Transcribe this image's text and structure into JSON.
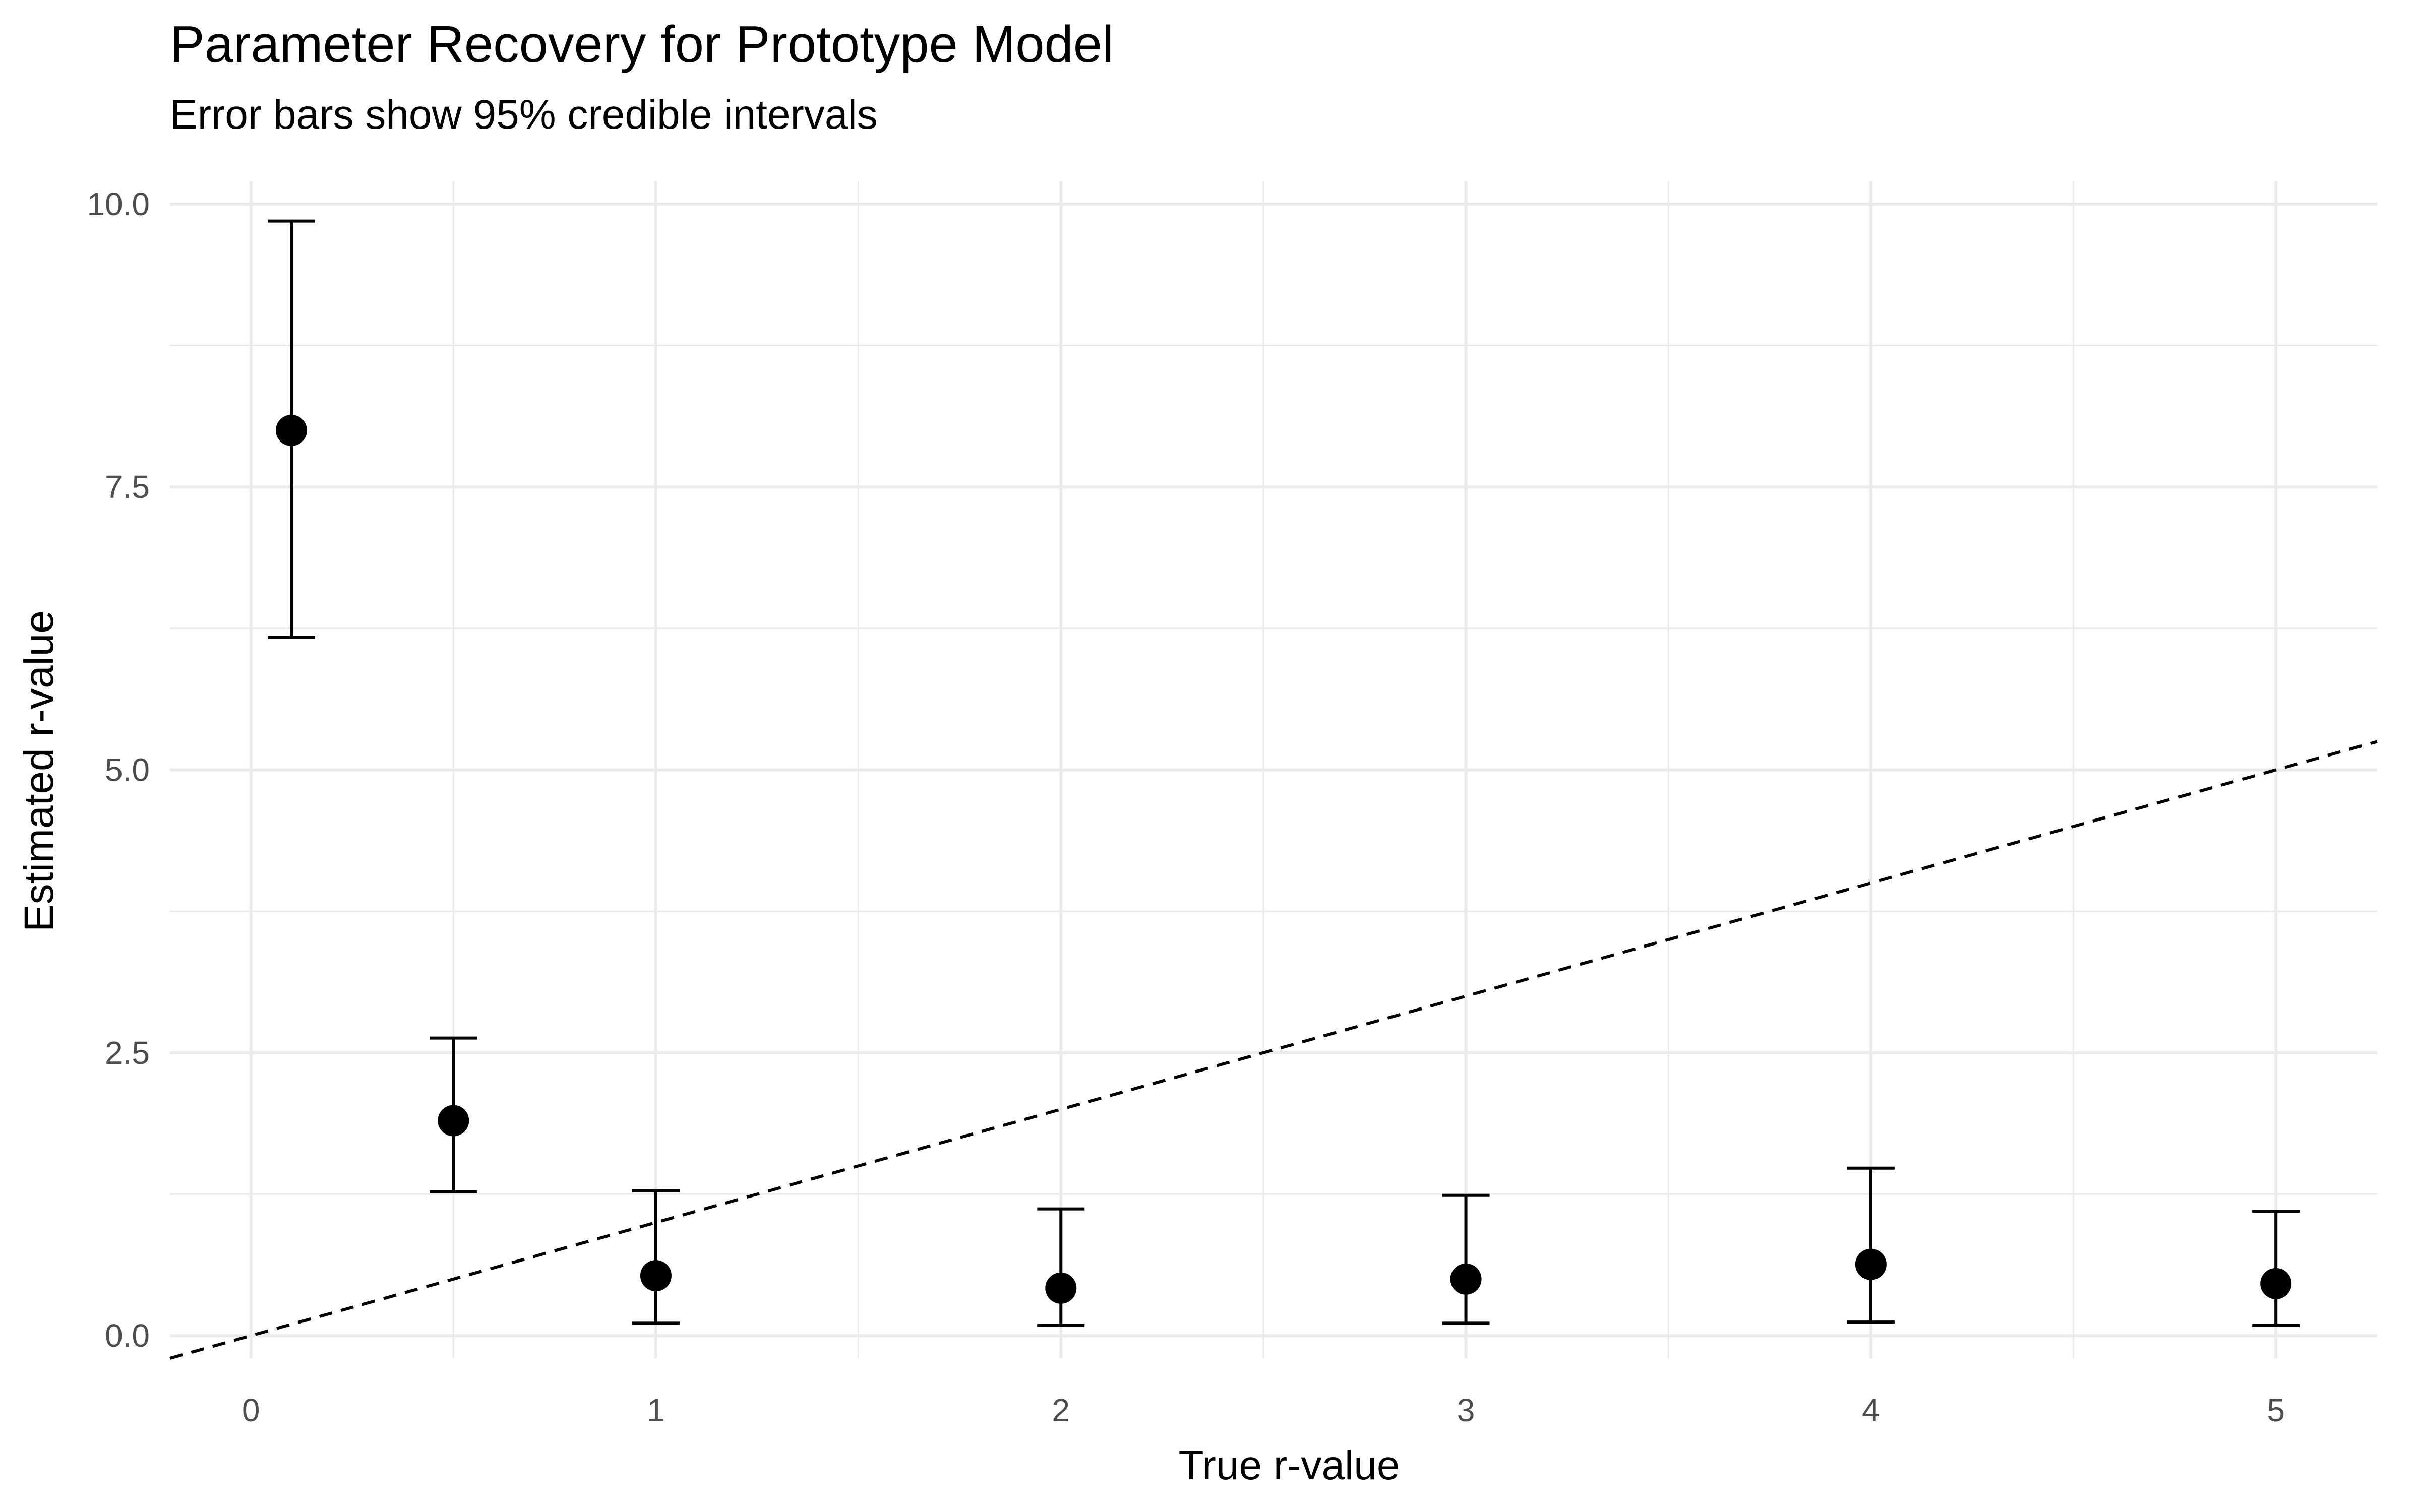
{
  "chart_data": {
    "type": "scatter",
    "title": "Parameter Recovery for Prototype Model",
    "subtitle": "Error bars show 95% credible intervals",
    "xlabel": "True r-value",
    "ylabel": "Estimated r-value",
    "xlim": [
      -0.2,
      5.25
    ],
    "ylim": [
      -0.2,
      10.2
    ],
    "x_ticks": [
      0,
      1,
      2,
      3,
      4,
      5
    ],
    "x_tick_labels": [
      "0",
      "1",
      "2",
      "3",
      "4",
      "5"
    ],
    "y_ticks": [
      0,
      2.5,
      5,
      7.5,
      10
    ],
    "y_tick_labels": [
      "0.0",
      "2.5",
      "5.0",
      "7.5",
      "10.0"
    ],
    "grid": true,
    "legend": "none",
    "reference_line": {
      "slope": 1,
      "intercept": 0,
      "style": "dashed"
    },
    "series": [
      {
        "points": [
          {
            "x": 0.1,
            "y": 8.0,
            "lower": 6.17,
            "upper": 9.85
          },
          {
            "x": 0.5,
            "y": 1.9,
            "lower": 1.27,
            "upper": 2.63
          },
          {
            "x": 1.0,
            "y": 0.53,
            "lower": 0.11,
            "upper": 1.28
          },
          {
            "x": 2.0,
            "y": 0.42,
            "lower": 0.09,
            "upper": 1.12
          },
          {
            "x": 3.0,
            "y": 0.5,
            "lower": 0.11,
            "upper": 1.24
          },
          {
            "x": 4.0,
            "y": 0.63,
            "lower": 0.12,
            "upper": 1.48
          },
          {
            "x": 5.0,
            "y": 0.46,
            "lower": 0.09,
            "upper": 1.1
          }
        ]
      }
    ],
    "colors": {
      "point": "#000000",
      "grid": "#ebebeb",
      "tick_text": "#4d4d4d"
    }
  }
}
